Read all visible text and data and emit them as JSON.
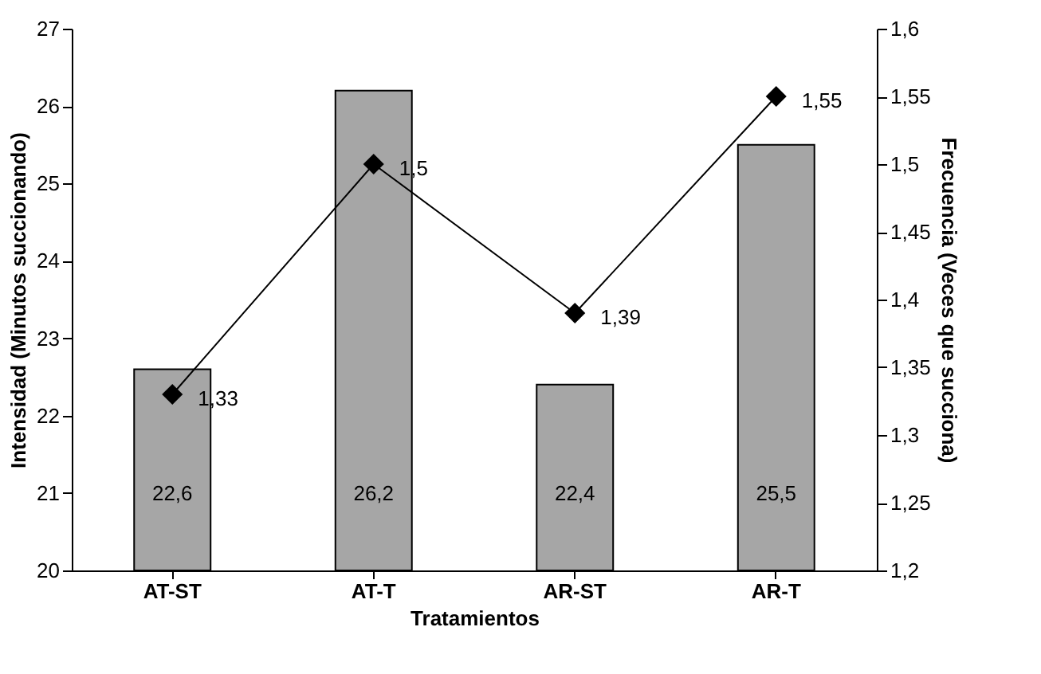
{
  "chart_data": {
    "type": "bar",
    "xlabel": "Tratamientos",
    "ylabel": "Intensidad (Minutos succionando)",
    "y2label": "Frecuencia (Veces que succiona)",
    "categories": [
      "AT-ST",
      "AT-T",
      "AR-ST",
      "AR-T"
    ],
    "series": [
      {
        "color": "#a6a6a6",
        "values": [
          22.6,
          26.2,
          22.4,
          25.5
        ],
        "value_labels": [
          "22,6",
          "26,2",
          "22,4",
          "25,5"
        ]
      },
      {
        "type": "line",
        "axis": "y2",
        "color": "#000000",
        "values": [
          1.33,
          1.5,
          1.39,
          1.55
        ],
        "value_labels": [
          "1,33",
          "1,5",
          "1,39",
          "1,55"
        ]
      }
    ],
    "marker": "diamond",
    "ylim": [
      20,
      27
    ],
    "yticks": [
      20,
      21,
      22,
      23,
      24,
      25,
      26,
      27
    ],
    "y2lim": [
      1.2,
      1.6
    ],
    "y2ticks": [
      {
        "value": 1.2,
        "label": "1,2"
      },
      {
        "value": 1.25,
        "label": "1,25"
      },
      {
        "value": 1.3,
        "label": "1,3"
      },
      {
        "value": 1.35,
        "label": "1,35"
      },
      {
        "value": 1.4,
        "label": "1,4"
      },
      {
        "value": 1.45,
        "label": "1,45"
      },
      {
        "value": 1.5,
        "label": "1,5"
      },
      {
        "value": 1.55,
        "label": "1,55"
      },
      {
        "value": 1.6,
        "label": "1,6"
      }
    ],
    "grid": false
  }
}
